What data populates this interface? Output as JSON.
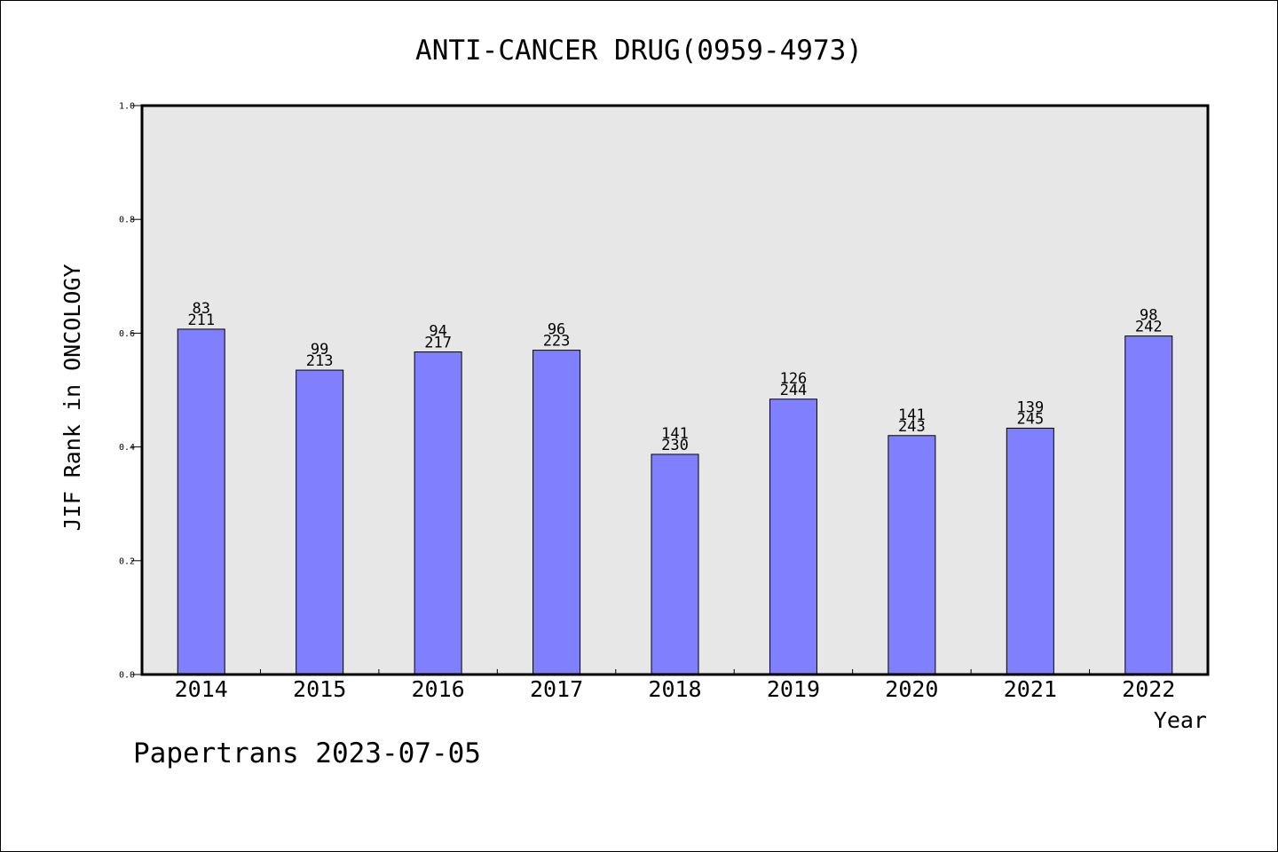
{
  "chart_data": {
    "type": "bar",
    "title": "ANTI-CANCER DRUG(0959-4973)",
    "xlabel": "Year",
    "ylabel": "JIF Rank in ONCOLOGY",
    "ylim": [
      0,
      1.0
    ],
    "yticks": [
      "0.0",
      "0.2",
      "0.4",
      "0.6",
      "0.8",
      "1.0"
    ],
    "grid": false,
    "categories": [
      "2014",
      "2015",
      "2016",
      "2017",
      "2018",
      "2019",
      "2020",
      "2021",
      "2022"
    ],
    "values": [
      0.607,
      0.535,
      0.567,
      0.57,
      0.387,
      0.484,
      0.42,
      0.433,
      0.595
    ],
    "rank_labels": [
      "83",
      "99",
      "94",
      "96",
      "141",
      "126",
      "141",
      "139",
      "98"
    ],
    "total_labels": [
      "211",
      "213",
      "217",
      "223",
      "230",
      "244",
      "243",
      "245",
      "242"
    ],
    "colors": {
      "bar": "#8080ff",
      "plot_background": "#e7e7e7",
      "axis": "#000000"
    }
  },
  "footer": {
    "text": "Papertrans 2023-07-05"
  }
}
